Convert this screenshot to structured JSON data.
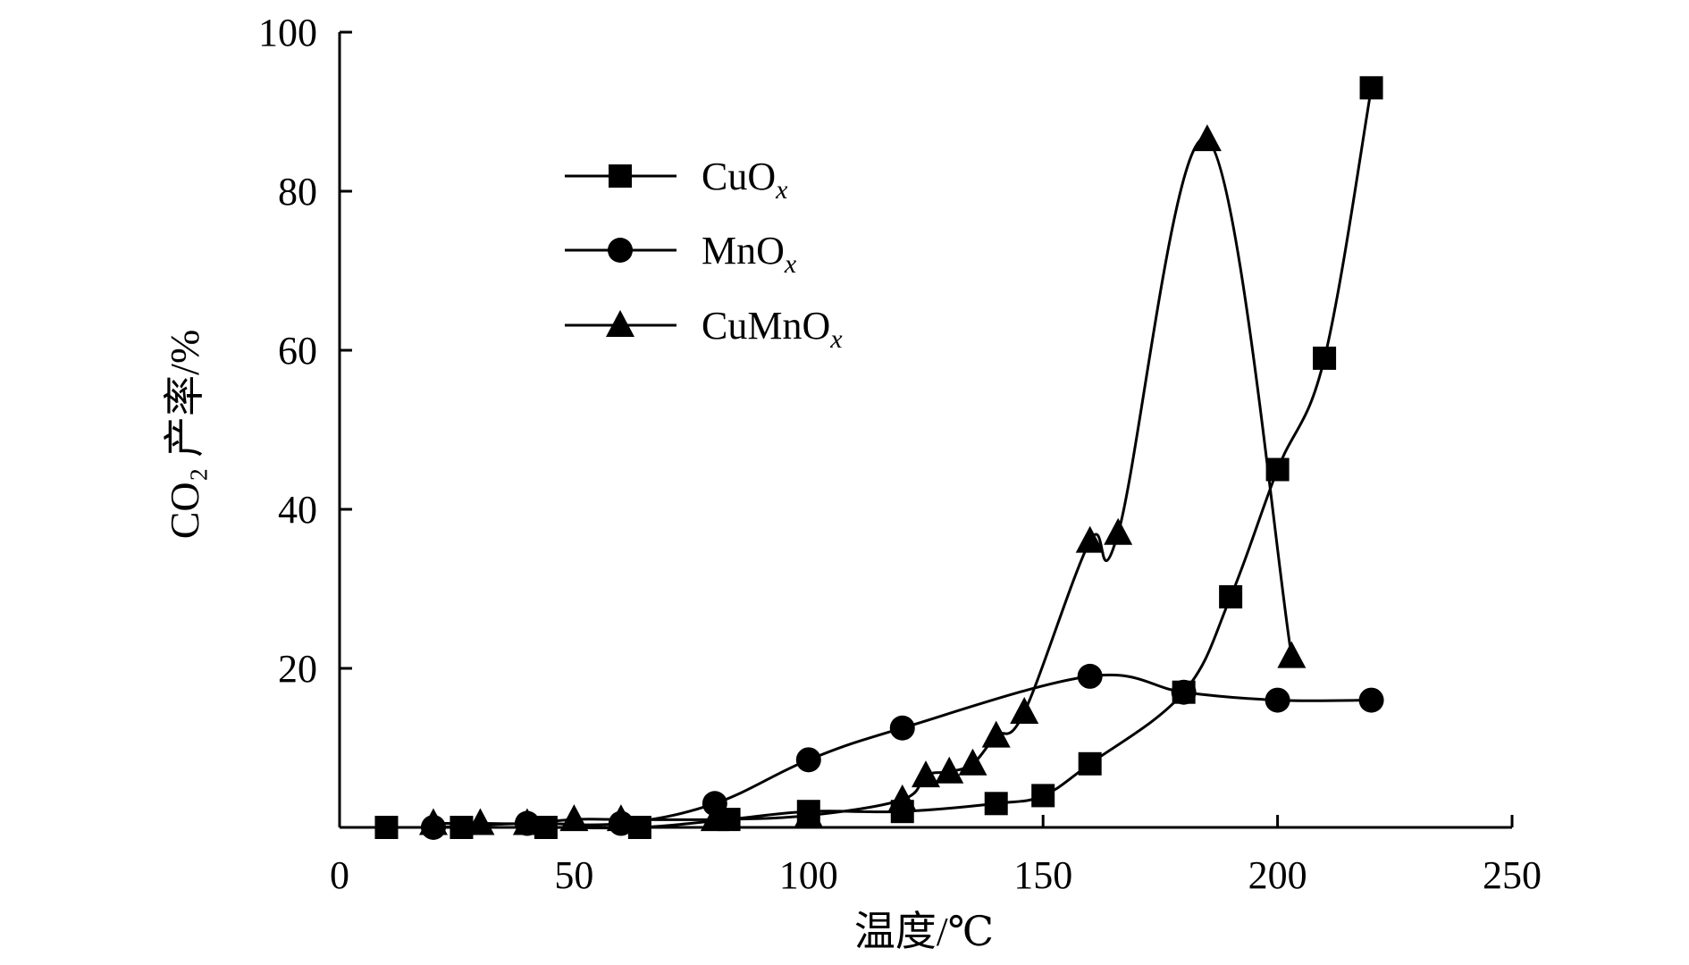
{
  "chart_data": {
    "type": "line",
    "xlabel": "温度/℃",
    "ylabel": "CO₂ 产率/%",
    "xlim": [
      0,
      250
    ],
    "ylim": [
      0,
      100
    ],
    "xticks": [
      0,
      50,
      100,
      150,
      200,
      250
    ],
    "yticks": [
      20,
      40,
      60,
      80,
      100
    ],
    "x_tick_labels": [
      "0",
      "50",
      "100",
      "150",
      "200",
      "250"
    ],
    "y_tick_labels": [
      "20",
      "40",
      "60",
      "80",
      "100"
    ],
    "grid": false,
    "legend_position": "upper-left",
    "series": [
      {
        "name": "CuOx",
        "label_main": "CuO",
        "label_sub": "x",
        "marker": "square",
        "x": [
          10,
          26,
          44,
          64,
          83,
          100,
          120,
          140,
          150,
          160,
          180,
          190,
          200,
          210,
          220
        ],
        "y": [
          0,
          0,
          0,
          0,
          1,
          2,
          2,
          3,
          4,
          8,
          17,
          29,
          45,
          59,
          93
        ]
      },
      {
        "name": "MnOx",
        "label_main": "MnO",
        "label_sub": "x",
        "marker": "circle",
        "x": [
          20,
          40,
          60,
          80,
          100,
          120,
          160,
          180,
          200,
          220
        ],
        "y": [
          0,
          0.5,
          0.5,
          3,
          8.5,
          12.5,
          19,
          17,
          16,
          16
        ]
      },
      {
        "name": "CuMnOx",
        "label_main": "CuMnO",
        "label_sub": "x",
        "marker": "triangle",
        "x": [
          20,
          30,
          40,
          50,
          60,
          80,
          100,
          120,
          125,
          130,
          135,
          140,
          146,
          160,
          166,
          185,
          203
        ],
        "y": [
          0.5,
          0.5,
          0.5,
          1,
          1,
          1,
          1.5,
          3.5,
          6.5,
          7,
          8,
          11.5,
          14.5,
          36,
          37,
          86.5,
          21.5
        ]
      }
    ]
  }
}
